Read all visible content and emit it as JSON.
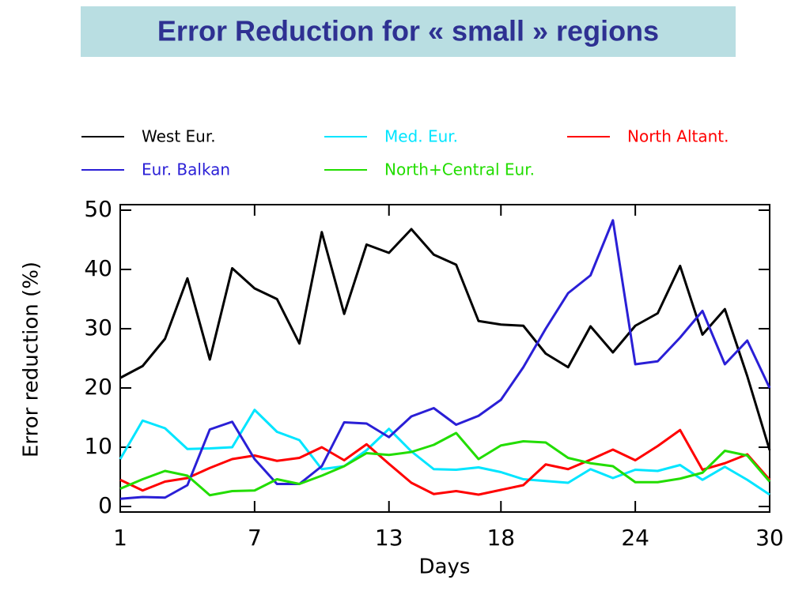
{
  "chart_data": {
    "type": "line",
    "title": "Error Reduction for « small » regions",
    "x_label": "Days",
    "y_label": "Error reduction (%)",
    "x": [
      1,
      2,
      3,
      4,
      5,
      6,
      7,
      8,
      9,
      10,
      11,
      12,
      13,
      14,
      15,
      16,
      17,
      18,
      19,
      20,
      21,
      22,
      23,
      24,
      25,
      26,
      27,
      28,
      29,
      30
    ],
    "xlim": [
      1,
      30
    ],
    "xticks": [
      1,
      7,
      13,
      18,
      24,
      30
    ],
    "ylim": [
      0,
      50
    ],
    "yticks": [
      0,
      10,
      20,
      30,
      40,
      50
    ],
    "series": [
      {
        "name": "West Eur.",
        "color": "#000000",
        "values": [
          21.7,
          23.7,
          28.3,
          38.5,
          24.8,
          40.2,
          36.8,
          35,
          27.5,
          46.3,
          32.5,
          44.2,
          42.8,
          46.8,
          42.5,
          40.8,
          31.3,
          30.7,
          30.5,
          25.8,
          23.5,
          30.4,
          26,
          30.5,
          32.6,
          40.6,
          29,
          33.3,
          22,
          9.5
        ]
      },
      {
        "name": "Med. Eur.",
        "color": "#00e5ff",
        "values": [
          8,
          14.5,
          13.2,
          9.7,
          9.8,
          10,
          16.3,
          12.6,
          11.2,
          6.3,
          6.8,
          9.5,
          13.1,
          9.3,
          6.3,
          6.2,
          6.6,
          5.8,
          4.6,
          4.3,
          4,
          6.3,
          4.8,
          6.2,
          6,
          7,
          4.5,
          6.7,
          4.5,
          2
        ]
      },
      {
        "name": "North Altant.",
        "color": "#ff0000",
        "values": [
          4.5,
          2.7,
          4.2,
          4.8,
          6.5,
          8,
          8.6,
          7.7,
          8.2,
          10,
          7.8,
          10.5,
          7.2,
          4,
          2.1,
          2.6,
          2,
          2.8,
          3.6,
          7.1,
          6.3,
          7.9,
          9.6,
          7.8,
          10.2,
          12.9,
          6.2,
          7.3,
          8.8,
          4.5
        ]
      },
      {
        "name": "Eur. Balkan",
        "color": "#2a1fd6",
        "values": [
          1.3,
          1.6,
          1.5,
          3.6,
          13,
          14.3,
          8,
          3.8,
          3.8,
          6.8,
          14.2,
          14,
          11.7,
          15.2,
          16.6,
          13.8,
          15.3,
          18,
          23.5,
          30,
          36,
          39,
          48.3,
          24,
          24.5,
          28.5,
          33,
          24,
          28,
          20
        ]
      },
      {
        "name": "North+Central Eur.",
        "color": "#22dd00",
        "values": [
          3,
          4.6,
          6,
          5.2,
          1.9,
          2.6,
          2.7,
          4.6,
          3.8,
          5.2,
          6.8,
          9,
          8.7,
          9.2,
          10.4,
          12.4,
          8,
          10.3,
          11,
          10.8,
          8.2,
          7.3,
          6.8,
          4.1,
          4.1,
          4.7,
          5.7,
          9.4,
          8.6,
          4.2
        ]
      }
    ]
  }
}
